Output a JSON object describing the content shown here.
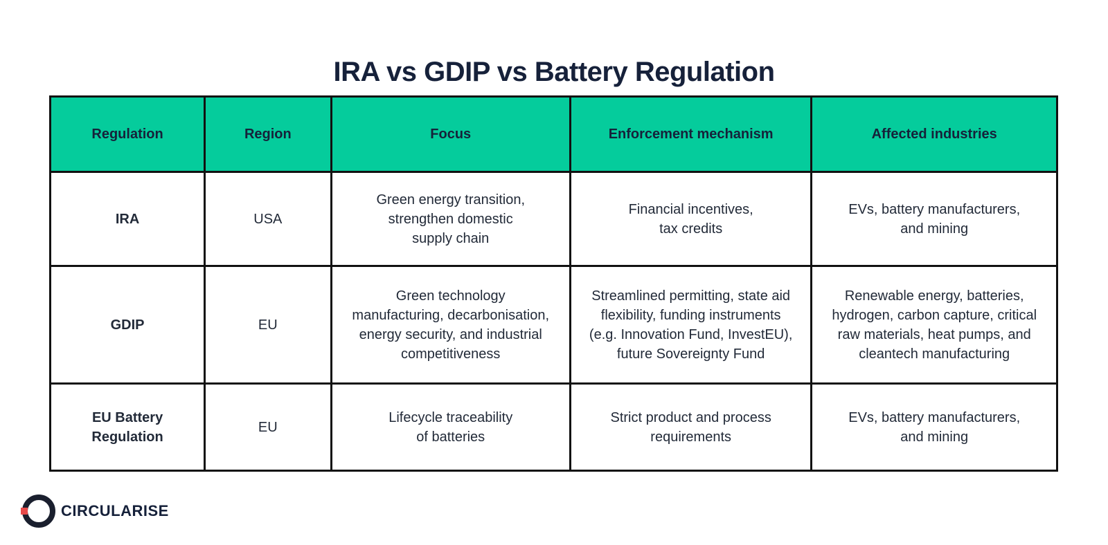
{
  "title": "IRA vs GDIP vs Battery Regulation",
  "table": {
    "headers": [
      "Regulation",
      "Region",
      "Focus",
      "Enforcement mechanism",
      "Affected industries"
    ],
    "rows": [
      {
        "regulation": "IRA",
        "region": "USA",
        "focus": "Green energy transition,\nstrengthen domestic\nsupply chain",
        "enforcement": "Financial incentives,\ntax credits",
        "industries": "EVs, battery manufacturers,\nand mining"
      },
      {
        "regulation": "GDIP",
        "region": "EU",
        "focus": "Green technology\nmanufacturing, decarbonisation,\nenergy security, and industrial\ncompetitiveness",
        "enforcement": "Streamlined permitting, state aid\nflexibility, funding instruments\n(e.g. Innovation Fund, InvestEU),\nfuture Sovereignty Fund",
        "industries": "Renewable energy, batteries,\nhydrogen, carbon capture, critical\nraw materials, heat pumps, and\ncleantech manufacturing"
      },
      {
        "regulation": "EU Battery\nRegulation",
        "region": "EU",
        "focus": "Lifecycle traceability\nof batteries",
        "enforcement": "Strict product and process\nrequirements",
        "industries": "EVs, battery manufacturers,\nand mining"
      }
    ]
  },
  "logo": {
    "text": "CIRCULARISE",
    "icon": "circularise-ring-logo-icon",
    "ring_color": "#1a1f2e",
    "accent_color": "#e84a4a"
  },
  "colors": {
    "header_bg": "#05cc9c",
    "border": "#111111",
    "title": "#16213a"
  }
}
